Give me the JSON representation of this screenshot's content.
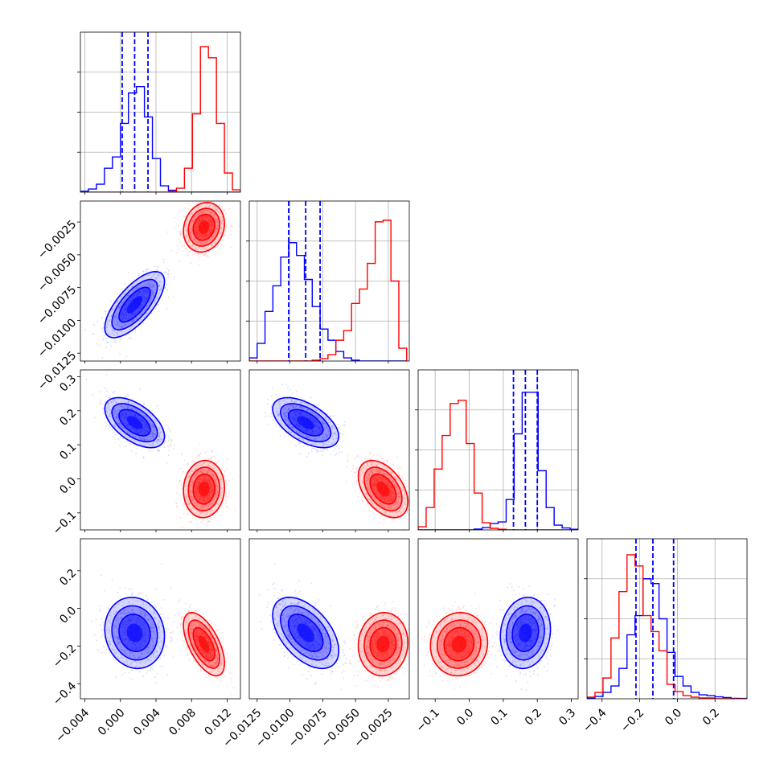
{
  "chart_data": {
    "type": "corner",
    "grid": true,
    "series": [
      {
        "color": "#0000ff"
      },
      {
        "color": "#ff0000"
      }
    ],
    "variables": [
      {
        "range": [
          -0.0045,
          0.0135
        ],
        "ticks": [
          "−0.004",
          "0.000",
          "0.004",
          "0.008",
          "0.012"
        ],
        "tick_values": [
          -0.004,
          0.0,
          0.004,
          0.008,
          0.012
        ],
        "quantiles_blue": [
          0.0002,
          0.0016,
          0.0031
        ]
      },
      {
        "range": [
          -0.0131,
          -0.0009
        ],
        "ticks": [
          "−0.0125",
          "−0.0100",
          "−0.0075",
          "−0.0050",
          "−0.0025"
        ],
        "tick_values": [
          -0.0125,
          -0.01,
          -0.0075,
          -0.005,
          -0.0025
        ],
        "quantiles_blue": [
          -0.0101,
          -0.0088,
          -0.0077
        ]
      },
      {
        "range": [
          -0.15,
          0.32
        ],
        "ticks": [
          "−0.1",
          "0.0",
          "0.1",
          "0.2",
          "0.3"
        ],
        "tick_values": [
          -0.1,
          0.0,
          0.1,
          0.2,
          0.3
        ],
        "quantiles_blue": [
          0.13,
          0.165,
          0.2
        ]
      },
      {
        "range": [
          -0.48,
          0.37
        ],
        "ticks": [
          "−0.4",
          "−0.2",
          "0.0",
          "0.2"
        ],
        "tick_values": [
          -0.4,
          -0.2,
          0.0,
          0.2
        ],
        "quantiles_blue": [
          -0.22,
          -0.13,
          -0.02
        ]
      }
    ],
    "blue": {
      "mean": [
        0.0016,
        -0.0088,
        0.165,
        -0.13
      ],
      "std": [
        0.0016,
        0.0012,
        0.035,
        0.09
      ],
      "corr": [
        [
          1,
          0.7,
          -0.55,
          -0.1
        ],
        [
          0.7,
          1,
          -0.55,
          -0.5
        ],
        [
          -0.55,
          -0.55,
          1,
          0.1
        ],
        [
          -0.1,
          -0.5,
          0.1,
          1
        ]
      ]
    },
    "red": {
      "mean": [
        0.0094,
        -0.0029,
        -0.03,
        -0.19
      ],
      "std": [
        0.0011,
        0.0009,
        0.04,
        0.08
      ],
      "corr": [
        [
          1,
          0.15,
          0.05,
          -0.6
        ],
        [
          0.15,
          1,
          -0.45,
          0.05
        ],
        [
          0.05,
          -0.45,
          1,
          0.05
        ],
        [
          -0.6,
          0.05,
          0.05,
          1
        ]
      ]
    },
    "histograms": [
      {
        "edges": [
          -0.0045,
          -0.0036,
          -0.0027,
          -0.0018,
          -0.0009,
          0.0,
          0.0009,
          0.0018,
          0.0027,
          0.0036,
          0.0045,
          0.0054,
          0.0063,
          0.0072,
          0.0081,
          0.009,
          0.0099,
          0.0108,
          0.0117,
          0.0126,
          0.0135
        ],
        "blue": [
          0.006,
          0.02,
          0.05,
          0.15,
          0.22,
          0.43,
          0.62,
          0.66,
          0.47,
          0.21,
          0.04,
          0.012,
          0,
          0,
          0,
          0,
          0,
          0,
          0,
          0
        ],
        "red": [
          0,
          0,
          0,
          0,
          0,
          0,
          0,
          0,
          0,
          0,
          0,
          0.005,
          0.025,
          0.15,
          0.49,
          0.91,
          0.84,
          0.43,
          0.12,
          0.015
        ]
      },
      {
        "edges": [
          -0.0131,
          -0.0125,
          -0.0119,
          -0.0113,
          -0.0107,
          -0.0101,
          -0.0095,
          -0.0089,
          -0.0083,
          -0.0077,
          -0.0071,
          -0.0065,
          -0.0059,
          -0.0053,
          -0.0047,
          -0.0041,
          -0.0035,
          -0.0029,
          -0.0023,
          -0.0017,
          -0.0011
        ],
        "blue": [
          0.02,
          0.11,
          0.31,
          0.47,
          0.65,
          0.74,
          0.66,
          0.51,
          0.34,
          0.2,
          0.13,
          0.06,
          0.02,
          0.005,
          0,
          0,
          0,
          0,
          0,
          0
        ],
        "red": [
          0,
          0,
          0,
          0,
          0,
          0,
          0,
          0,
          0.005,
          0.015,
          0.04,
          0.13,
          0.19,
          0.36,
          0.45,
          0.61,
          0.87,
          0.88,
          0.5,
          0.08
        ]
      },
      {
        "edges": [
          -0.15,
          -0.1265,
          -0.103,
          -0.0795,
          -0.056,
          -0.0325,
          -0.009,
          0.0145,
          0.038,
          0.0615,
          0.085,
          0.1085,
          0.132,
          0.1555,
          0.179,
          0.2025,
          0.226,
          0.2495,
          0.273,
          0.2965,
          0.32
        ],
        "blue": [
          0,
          0,
          0,
          0,
          0,
          0,
          0,
          0.005,
          0.015,
          0.04,
          0.05,
          0.19,
          0.6,
          0.86,
          0.86,
          0.37,
          0.14,
          0.03,
          0.012,
          0.004
        ],
        "red": [
          0.02,
          0.14,
          0.38,
          0.59,
          0.79,
          0.81,
          0.54,
          0.23,
          0.045,
          0.01,
          0.004,
          0,
          0,
          0,
          0,
          0,
          0,
          0,
          0,
          0
        ]
      },
      {
        "edges": [
          -0.48,
          -0.4375,
          -0.395,
          -0.3525,
          -0.31,
          -0.2675,
          -0.225,
          -0.1825,
          -0.14,
          -0.0975,
          -0.055,
          -0.0125,
          0.03,
          0.0725,
          0.115,
          0.1575,
          0.2,
          0.2425,
          0.285,
          0.3275,
          0.37
        ],
        "blue": [
          0.005,
          0.015,
          0.04,
          0.08,
          0.19,
          0.4,
          0.52,
          0.75,
          0.72,
          0.5,
          0.29,
          0.14,
          0.08,
          0.04,
          0.025,
          0.02,
          0.012,
          0.008,
          0.003,
          0.002
        ],
        "red": [
          0.01,
          0.04,
          0.13,
          0.38,
          0.67,
          0.9,
          0.83,
          0.52,
          0.42,
          0.3,
          0.09,
          0.045,
          0.02,
          0.01,
          0.005,
          0.005,
          0,
          0,
          0,
          0
        ]
      }
    ]
  }
}
